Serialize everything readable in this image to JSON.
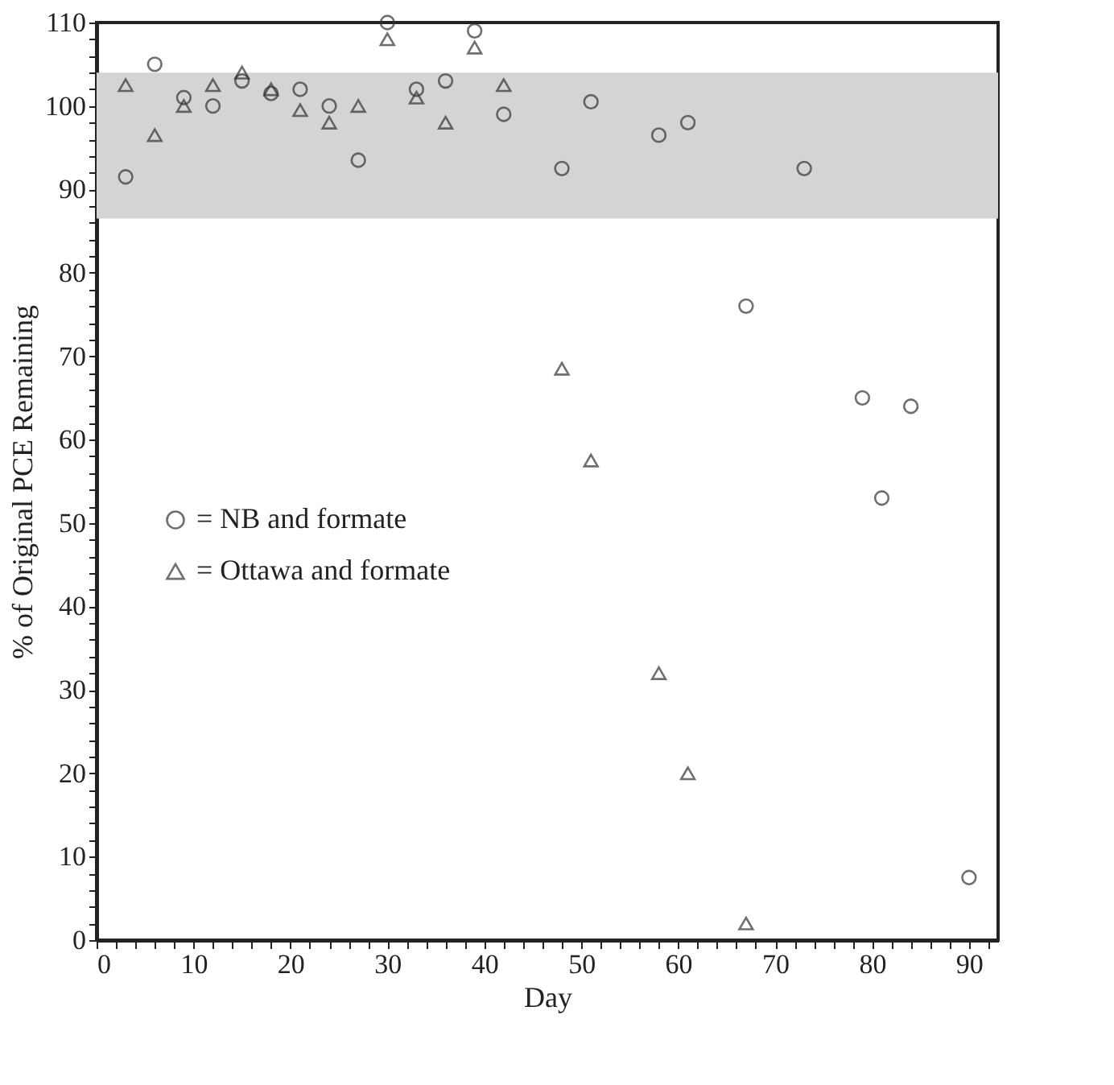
{
  "chart_data": {
    "type": "scatter",
    "xlabel": "Day",
    "ylabel": "% of Original PCE Remaining",
    "xlim": [
      0,
      93
    ],
    "ylim": [
      0,
      110
    ],
    "xticks": [
      0,
      {
        "value": 2,
        "label": null
      },
      {
        "value": 4,
        "label": null
      },
      {
        "value": 6,
        "label": null
      },
      {
        "value": 8,
        "label": null
      },
      10,
      {
        "value": 12,
        "label": null
      },
      {
        "value": 14,
        "label": null
      },
      {
        "value": 16,
        "label": null
      },
      {
        "value": 18,
        "label": null
      },
      20,
      {
        "value": 22,
        "label": null
      },
      {
        "value": 24,
        "label": null
      },
      {
        "value": 26,
        "label": null
      },
      {
        "value": 28,
        "label": null
      },
      30,
      {
        "value": 32,
        "label": null
      },
      {
        "value": 34,
        "label": null
      },
      {
        "value": 36,
        "label": null
      },
      {
        "value": 38,
        "label": null
      },
      40,
      {
        "value": 42,
        "label": null
      },
      {
        "value": 44,
        "label": null
      },
      {
        "value": 46,
        "label": null
      },
      {
        "value": 48,
        "label": null
      },
      50,
      {
        "value": 52,
        "label": null
      },
      {
        "value": 54,
        "label": null
      },
      {
        "value": 56,
        "label": null
      },
      {
        "value": 58,
        "label": null
      },
      60,
      {
        "value": 62,
        "label": null
      },
      {
        "value": 64,
        "label": null
      },
      {
        "value": 66,
        "label": null
      },
      {
        "value": 68,
        "label": null
      },
      70,
      {
        "value": 72,
        "label": null
      },
      {
        "value": 74,
        "label": null
      },
      {
        "value": 76,
        "label": null
      },
      {
        "value": 78,
        "label": null
      },
      80,
      {
        "value": 82,
        "label": null
      },
      {
        "value": 84,
        "label": null
      },
      {
        "value": 86,
        "label": null
      },
      {
        "value": 88,
        "label": null
      },
      90,
      {
        "value": 92,
        "label": null
      }
    ],
    "yticks": [
      0,
      {
        "value": 2,
        "label": null
      },
      {
        "value": 4,
        "label": null
      },
      {
        "value": 6,
        "label": null
      },
      {
        "value": 8,
        "label": null
      },
      10,
      {
        "value": 12,
        "label": null
      },
      {
        "value": 14,
        "label": null
      },
      {
        "value": 16,
        "label": null
      },
      {
        "value": 18,
        "label": null
      },
      20,
      {
        "value": 22,
        "label": null
      },
      {
        "value": 24,
        "label": null
      },
      {
        "value": 26,
        "label": null
      },
      {
        "value": 28,
        "label": null
      },
      30,
      {
        "value": 32,
        "label": null
      },
      {
        "value": 34,
        "label": null
      },
      {
        "value": 36,
        "label": null
      },
      {
        "value": 38,
        "label": null
      },
      40,
      {
        "value": 42,
        "label": null
      },
      {
        "value": 44,
        "label": null
      },
      {
        "value": 46,
        "label": null
      },
      {
        "value": 48,
        "label": null
      },
      50,
      {
        "value": 52,
        "label": null
      },
      {
        "value": 54,
        "label": null
      },
      {
        "value": 56,
        "label": null
      },
      {
        "value": 58,
        "label": null
      },
      60,
      {
        "value": 62,
        "label": null
      },
      {
        "value": 64,
        "label": null
      },
      {
        "value": 66,
        "label": null
      },
      {
        "value": 68,
        "label": null
      },
      70,
      {
        "value": 72,
        "label": null
      },
      {
        "value": 74,
        "label": null
      },
      {
        "value": 76,
        "label": null
      },
      {
        "value": 78,
        "label": null
      },
      80,
      {
        "value": 82,
        "label": null
      },
      {
        "value": 84,
        "label": null
      },
      {
        "value": 86,
        "label": null
      },
      {
        "value": 88,
        "label": null
      },
      90,
      {
        "value": 92,
        "label": null
      },
      {
        "value": 94,
        "label": null
      },
      {
        "value": 96,
        "label": null
      },
      {
        "value": 98,
        "label": null
      },
      100,
      {
        "value": 102,
        "label": null
      },
      {
        "value": 104,
        "label": null
      },
      {
        "value": 106,
        "label": null
      },
      {
        "value": 108,
        "label": null
      },
      110
    ],
    "grid": false,
    "legend": "bottom left",
    "bands": [
      {
        "axis": "y",
        "from": 86.5,
        "to": 104,
        "color": "#d4d4d4"
      }
    ],
    "series": [
      {
        "name": "= NB and formate",
        "color": "#333333",
        "marker": "circle",
        "x": [
          3,
          6,
          9,
          12,
          15,
          18,
          21,
          24,
          27,
          30,
          33,
          36,
          39,
          42,
          48,
          51,
          58,
          61,
          67,
          73,
          79,
          81,
          84,
          90
        ],
        "values": [
          91.5,
          105,
          101,
          100,
          103,
          101.5,
          102,
          100,
          93.5,
          110,
          102,
          103,
          109,
          99,
          92.5,
          100.5,
          96.5,
          98,
          76,
          92.5,
          65,
          53,
          64,
          7.5
        ]
      },
      {
        "name": "= Ottawa and formate",
        "color": "#333333",
        "marker": "triangle",
        "x": [
          3,
          6,
          9,
          12,
          15,
          18,
          21,
          24,
          27,
          30,
          33,
          36,
          39,
          42,
          48,
          51,
          58,
          61,
          67
        ],
        "values": [
          102.5,
          96.5,
          100,
          102.5,
          104,
          102,
          99.5,
          98,
          100,
          108,
          101,
          98,
          107,
          102.5,
          68.5,
          57.5,
          32,
          20,
          2
        ]
      }
    ]
  }
}
